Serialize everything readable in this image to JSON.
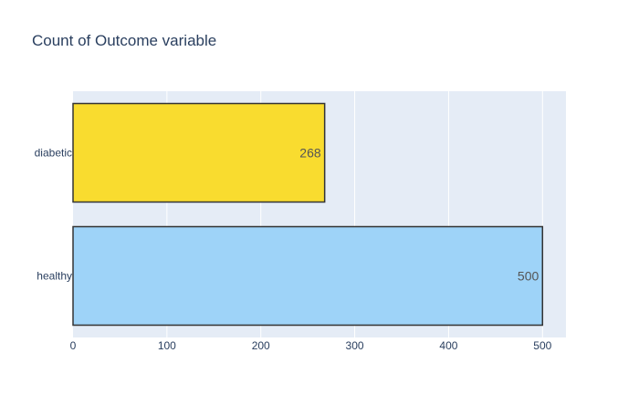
{
  "chart_data": {
    "type": "bar",
    "orientation": "horizontal",
    "title": "Count of Outcome variable",
    "xlabel": "",
    "ylabel": "",
    "categories": [
      "healthy",
      "diabetic"
    ],
    "values": [
      500,
      268
    ],
    "data_labels": [
      "500",
      "268"
    ],
    "colors": [
      "#9ed3f8",
      "#f9dc2f"
    ],
    "bar_outline_color": "#333333",
    "plot_background": "#e5ecf6",
    "xlim": [
      0,
      525
    ],
    "xticks": [
      0,
      100,
      200,
      300,
      400,
      500
    ],
    "grid": true,
    "legend": "none"
  }
}
